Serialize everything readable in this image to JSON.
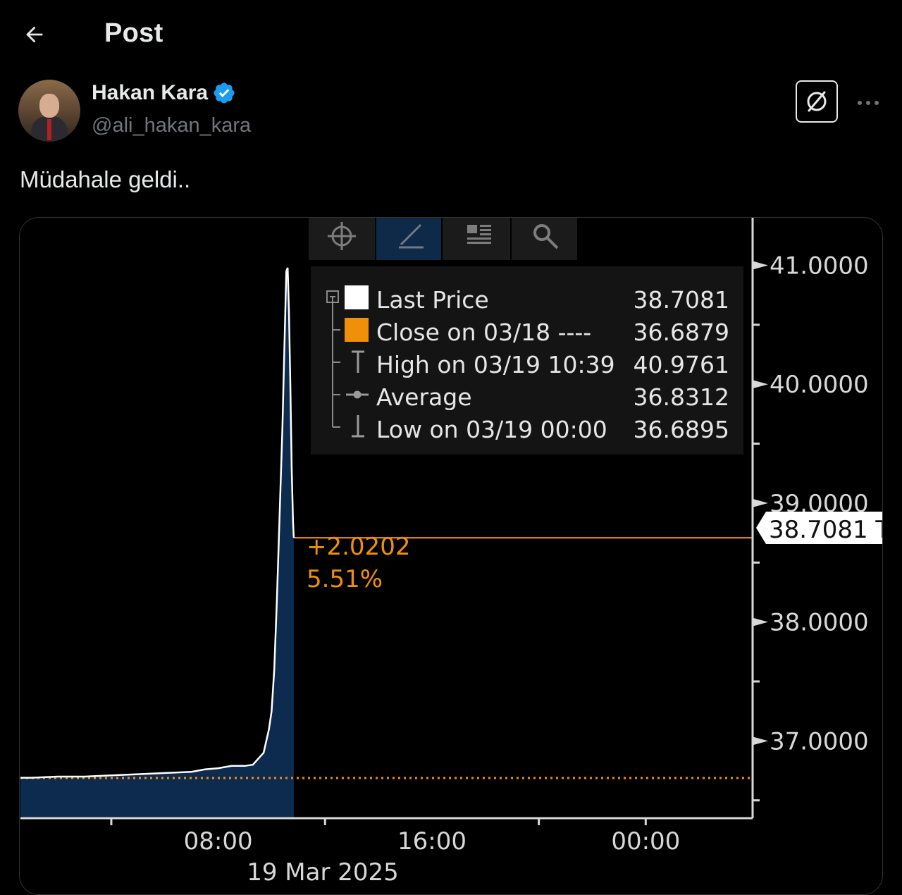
{
  "header": {
    "title": "Post"
  },
  "author": {
    "name": "Hakan Kara",
    "handle": "@ali_hakan_kara",
    "verified": true
  },
  "post": {
    "text": "Müdahale geldi.."
  },
  "icons": {
    "back": "arrow-left-icon",
    "verified": "verified-badge-icon",
    "grok": "grok-icon",
    "more": "more-horizontal-icon",
    "toolbar": [
      "crosshair-icon",
      "pencil-icon",
      "news-icon",
      "magnifier-icon"
    ]
  },
  "colors": {
    "accent": "#1d9bf0",
    "last_price": "#ffffff",
    "close_line": "#f0900a",
    "area_fill": "#0d2d52",
    "axis": "#d8d8d8"
  },
  "chart_data": {
    "type": "line",
    "legend": [
      {
        "label": "Last Price",
        "value": "38.7081"
      },
      {
        "label": "Close on 03/18 ----",
        "value": "36.6879"
      },
      {
        "label": "High on 03/19 10:39",
        "value": "40.9761"
      },
      {
        "label": "Average",
        "value": "36.8312"
      },
      {
        "label": "Low on 03/19 00:00",
        "value": "36.6895"
      }
    ],
    "y_ticks": [
      "41.0000",
      "40.0000",
      "39.0000",
      "38.0000",
      "37.0000"
    ],
    "y_tick_values": [
      41,
      40,
      39,
      38,
      37
    ],
    "ylim": [
      36.35,
      41.4
    ],
    "x_ticks": [
      "08:00",
      "16:00",
      "00:00"
    ],
    "x_tick_hours": [
      8,
      16,
      24
    ],
    "x_sublabel": "19 Mar 2025",
    "xlim_hours": [
      0.6,
      28
    ],
    "last_price_marker": "38.7081 T",
    "last_price": 38.7081,
    "prev_close": 36.6879,
    "change_label": "+2.0202",
    "change_pct_label": "5.51%",
    "legend_placement": "top-center",
    "grid": false,
    "series": [
      {
        "name": "Last Price",
        "points": [
          [
            0.6,
            36.69
          ],
          [
            1,
            36.69
          ],
          [
            2,
            36.7
          ],
          [
            3,
            36.7
          ],
          [
            4,
            36.71
          ],
          [
            5,
            36.72
          ],
          [
            6,
            36.73
          ],
          [
            7,
            36.74
          ],
          [
            7.5,
            36.76
          ],
          [
            8,
            36.77
          ],
          [
            8.5,
            36.79
          ],
          [
            9,
            36.79
          ],
          [
            9.3,
            36.8
          ],
          [
            9.5,
            36.85
          ],
          [
            9.7,
            36.9
          ],
          [
            9.9,
            37.1
          ],
          [
            10.0,
            37.25
          ],
          [
            10.1,
            37.6
          ],
          [
            10.2,
            38.2
          ],
          [
            10.3,
            38.9
          ],
          [
            10.4,
            39.6
          ],
          [
            10.5,
            40.5
          ],
          [
            10.55,
            40.95
          ],
          [
            10.6,
            40.98
          ],
          [
            10.65,
            40.6
          ],
          [
            10.7,
            40.0
          ],
          [
            10.75,
            39.3
          ],
          [
            10.8,
            38.85
          ],
          [
            10.83,
            38.7081
          ]
        ]
      }
    ]
  }
}
